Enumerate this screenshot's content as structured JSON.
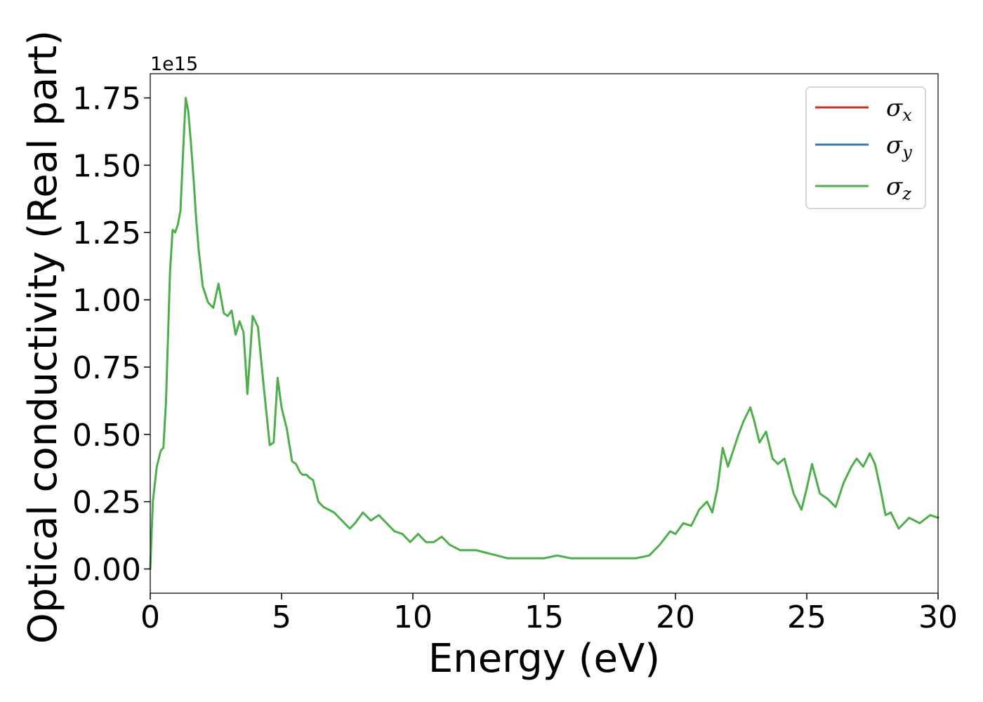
{
  "chart_data": {
    "type": "line",
    "xlabel": "Energy (eV)",
    "ylabel": "Optical conductivity (Real part)",
    "y_offset_label": "1e15",
    "xlim": [
      0,
      30
    ],
    "ylim": [
      -0.09,
      1.84
    ],
    "x_ticks": [
      0,
      5,
      10,
      15,
      20,
      25,
      30
    ],
    "x_tick_labels": [
      "0",
      "5",
      "10",
      "15",
      "20",
      "25",
      "30"
    ],
    "y_ticks": [
      0.0,
      0.25,
      0.5,
      0.75,
      1.0,
      1.25,
      1.5,
      1.75
    ],
    "y_tick_labels": [
      "0.00",
      "0.25",
      "0.50",
      "0.75",
      "1.00",
      "1.25",
      "1.50",
      "1.75"
    ],
    "grid": false,
    "legend_position": "top-right",
    "legend": [
      {
        "symbol": "σ",
        "subscript": "x",
        "color": "#d62728"
      },
      {
        "symbol": "σ",
        "subscript": "y",
        "color": "#3a78b0"
      },
      {
        "symbol": "σ",
        "subscript": "z",
        "color": "#4daf4a"
      }
    ],
    "series": [
      {
        "color": "#4daf4a",
        "identical_series": [
          "x",
          "y",
          "z"
        ],
        "x": [
          0,
          0.1,
          0.25,
          0.4,
          0.5,
          0.6,
          0.75,
          0.85,
          0.95,
          1.05,
          1.15,
          1.25,
          1.35,
          1.45,
          1.55,
          1.65,
          1.75,
          1.85,
          2.0,
          2.2,
          2.4,
          2.6,
          2.8,
          2.95,
          3.1,
          3.25,
          3.4,
          3.55,
          3.7,
          3.9,
          4.1,
          4.35,
          4.55,
          4.7,
          4.85,
          5.0,
          5.2,
          5.4,
          5.55,
          5.7,
          5.8,
          5.95,
          6.05,
          6.2,
          6.4,
          6.6,
          6.8,
          7.0,
          7.3,
          7.6,
          7.8,
          8.1,
          8.4,
          8.7,
          9.0,
          9.3,
          9.6,
          9.9,
          10.2,
          10.5,
          10.8,
          11.1,
          11.4,
          11.8,
          12.1,
          12.4,
          12.8,
          13.2,
          13.6,
          14.0,
          14.5,
          15.0,
          15.5,
          16.0,
          16.5,
          17.0,
          17.5,
          18.0,
          18.5,
          19.0,
          19.4,
          19.8,
          20.0,
          20.3,
          20.6,
          20.9,
          21.2,
          21.4,
          21.6,
          21.8,
          22.0,
          22.2,
          22.4,
          22.6,
          22.85,
          23.0,
          23.2,
          23.45,
          23.7,
          23.9,
          24.15,
          24.5,
          24.8,
          25.0,
          25.2,
          25.5,
          25.8,
          26.1,
          26.4,
          26.7,
          26.9,
          27.15,
          27.4,
          27.6,
          27.8,
          28.0,
          28.2,
          28.5,
          28.9,
          29.3,
          29.7,
          30.0
        ],
        "y": [
          0,
          0.25,
          0.38,
          0.44,
          0.45,
          0.62,
          1.1,
          1.26,
          1.25,
          1.28,
          1.33,
          1.55,
          1.75,
          1.7,
          1.58,
          1.45,
          1.3,
          1.18,
          1.05,
          0.99,
          0.97,
          1.06,
          0.95,
          0.94,
          0.96,
          0.87,
          0.92,
          0.88,
          0.65,
          0.94,
          0.9,
          0.65,
          0.46,
          0.47,
          0.71,
          0.6,
          0.52,
          0.4,
          0.39,
          0.36,
          0.35,
          0.35,
          0.34,
          0.33,
          0.25,
          0.23,
          0.22,
          0.21,
          0.18,
          0.15,
          0.17,
          0.21,
          0.18,
          0.2,
          0.17,
          0.14,
          0.13,
          0.1,
          0.13,
          0.1,
          0.1,
          0.12,
          0.09,
          0.07,
          0.07,
          0.07,
          0.06,
          0.05,
          0.04,
          0.04,
          0.04,
          0.04,
          0.05,
          0.04,
          0.04,
          0.04,
          0.04,
          0.04,
          0.04,
          0.05,
          0.09,
          0.14,
          0.13,
          0.17,
          0.16,
          0.22,
          0.25,
          0.21,
          0.3,
          0.45,
          0.38,
          0.44,
          0.5,
          0.55,
          0.6,
          0.55,
          0.47,
          0.51,
          0.41,
          0.39,
          0.41,
          0.28,
          0.22,
          0.3,
          0.39,
          0.28,
          0.26,
          0.23,
          0.32,
          0.38,
          0.41,
          0.38,
          0.43,
          0.39,
          0.3,
          0.2,
          0.21,
          0.15,
          0.19,
          0.17,
          0.2,
          0.19
        ]
      }
    ]
  }
}
